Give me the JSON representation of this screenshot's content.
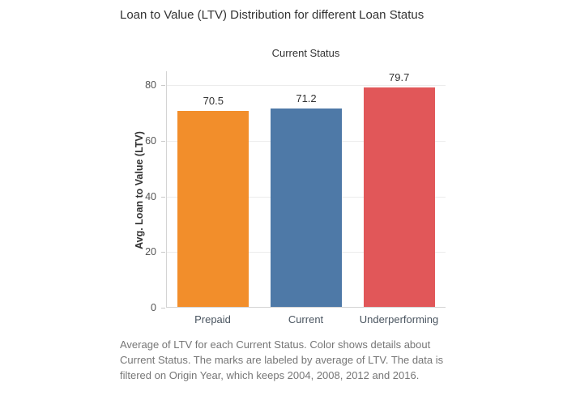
{
  "title": "Loan to Value (LTV) Distribution for different Loan Status",
  "caption": "Average of LTV for each Current Status.  Color shows details about Current Status.  The marks are labeled by average of LTV. The data is filtered on Origin Year, which keeps 2004, 2008, 2012 and 2016.",
  "chart_data": {
    "type": "bar",
    "title": "Loan to Value (LTV) Distribution for different Loan Status",
    "subtitle": "Current Status",
    "categories": [
      "Prepaid",
      "Current",
      "Underperforming"
    ],
    "values": [
      70.5,
      71.2,
      79.7
    ],
    "value_labels": [
      "70.5",
      "71.2",
      "79.7"
    ],
    "colors": [
      "#f28e2b",
      "#4e79a7",
      "#e15759"
    ],
    "xlabel": "",
    "ylabel": "Avg. Loan to Value (LTV)",
    "yticks": [
      0,
      20,
      40,
      60,
      80
    ],
    "ylim": [
      0,
      85
    ],
    "grid": "off",
    "legend_position": "none"
  },
  "colors": {
    "axis_line": "#d4d4d4",
    "gridline": "#ececec",
    "title_text": "#333333",
    "tick_text": "#555555",
    "category_text": "#4a5560",
    "caption_text": "#767676",
    "background": "#ffffff"
  }
}
